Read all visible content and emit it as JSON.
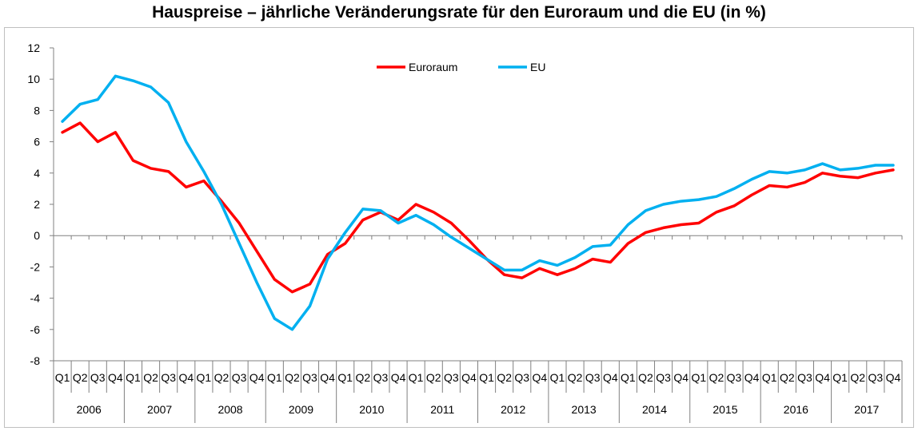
{
  "chart_data": {
    "type": "line",
    "title": "Hauspreise – jährliche Veränderungsrate für den Euroraum und die EU (in %)",
    "xlabel": "",
    "ylabel": "",
    "ylim": [
      -8,
      12
    ],
    "yticks": [
      "12",
      "10",
      "8",
      "6",
      "4",
      "2",
      "0",
      "-2",
      "-4",
      "-6",
      "-8"
    ],
    "grid": false,
    "legend_position": "top-center",
    "quarters": [
      "Q1",
      "Q2",
      "Q3",
      "Q4",
      "Q1",
      "Q2",
      "Q3",
      "Q4",
      "Q1",
      "Q2",
      "Q3",
      "Q4",
      "Q1",
      "Q2",
      "Q3",
      "Q4",
      "Q1",
      "Q2",
      "Q3",
      "Q4",
      "Q1",
      "Q2",
      "Q3",
      "Q4",
      "Q1",
      "Q2",
      "Q3",
      "Q4",
      "Q1",
      "Q2",
      "Q3",
      "Q4",
      "Q1",
      "Q2",
      "Q3",
      "Q4",
      "Q1",
      "Q2",
      "Q3",
      "Q4",
      "Q1",
      "Q2",
      "Q3",
      "Q4",
      "Q1",
      "Q2",
      "Q3",
      "Q4"
    ],
    "years": [
      "2006",
      "2007",
      "2008",
      "2009",
      "2010",
      "2011",
      "2012",
      "2013",
      "2014",
      "2015",
      "2016",
      "2017"
    ],
    "series": [
      {
        "name": "Euroraum",
        "color": "#ff0000",
        "values": [
          6.6,
          7.2,
          6.0,
          6.6,
          4.8,
          4.3,
          4.1,
          3.1,
          3.5,
          2.2,
          0.8,
          -1.0,
          -2.8,
          -3.6,
          -3.1,
          -1.2,
          -0.5,
          1.0,
          1.5,
          1.0,
          2.0,
          1.5,
          0.8,
          -0.3,
          -1.5,
          -2.5,
          -2.7,
          -2.1,
          -2.5,
          -2.1,
          -1.5,
          -1.7,
          -0.5,
          0.2,
          0.5,
          0.7,
          0.8,
          1.5,
          1.9,
          2.6,
          3.2,
          3.1,
          3.4,
          4.0,
          3.8,
          3.7,
          4.0,
          4.2
        ]
      },
      {
        "name": "EU",
        "color": "#00b0f0",
        "values": [
          7.3,
          8.4,
          8.7,
          10.2,
          9.9,
          9.5,
          8.5,
          6.0,
          4.1,
          2.0,
          -0.5,
          -3.0,
          -5.3,
          -6.0,
          -4.5,
          -1.5,
          0.2,
          1.7,
          1.6,
          0.8,
          1.3,
          0.7,
          -0.1,
          -0.8,
          -1.5,
          -2.2,
          -2.2,
          -1.6,
          -1.9,
          -1.4,
          -0.7,
          -0.6,
          0.7,
          1.6,
          2.0,
          2.2,
          2.3,
          2.5,
          3.0,
          3.6,
          4.1,
          4.0,
          4.2,
          4.6,
          4.2,
          4.3,
          4.5,
          4.5
        ]
      }
    ]
  }
}
